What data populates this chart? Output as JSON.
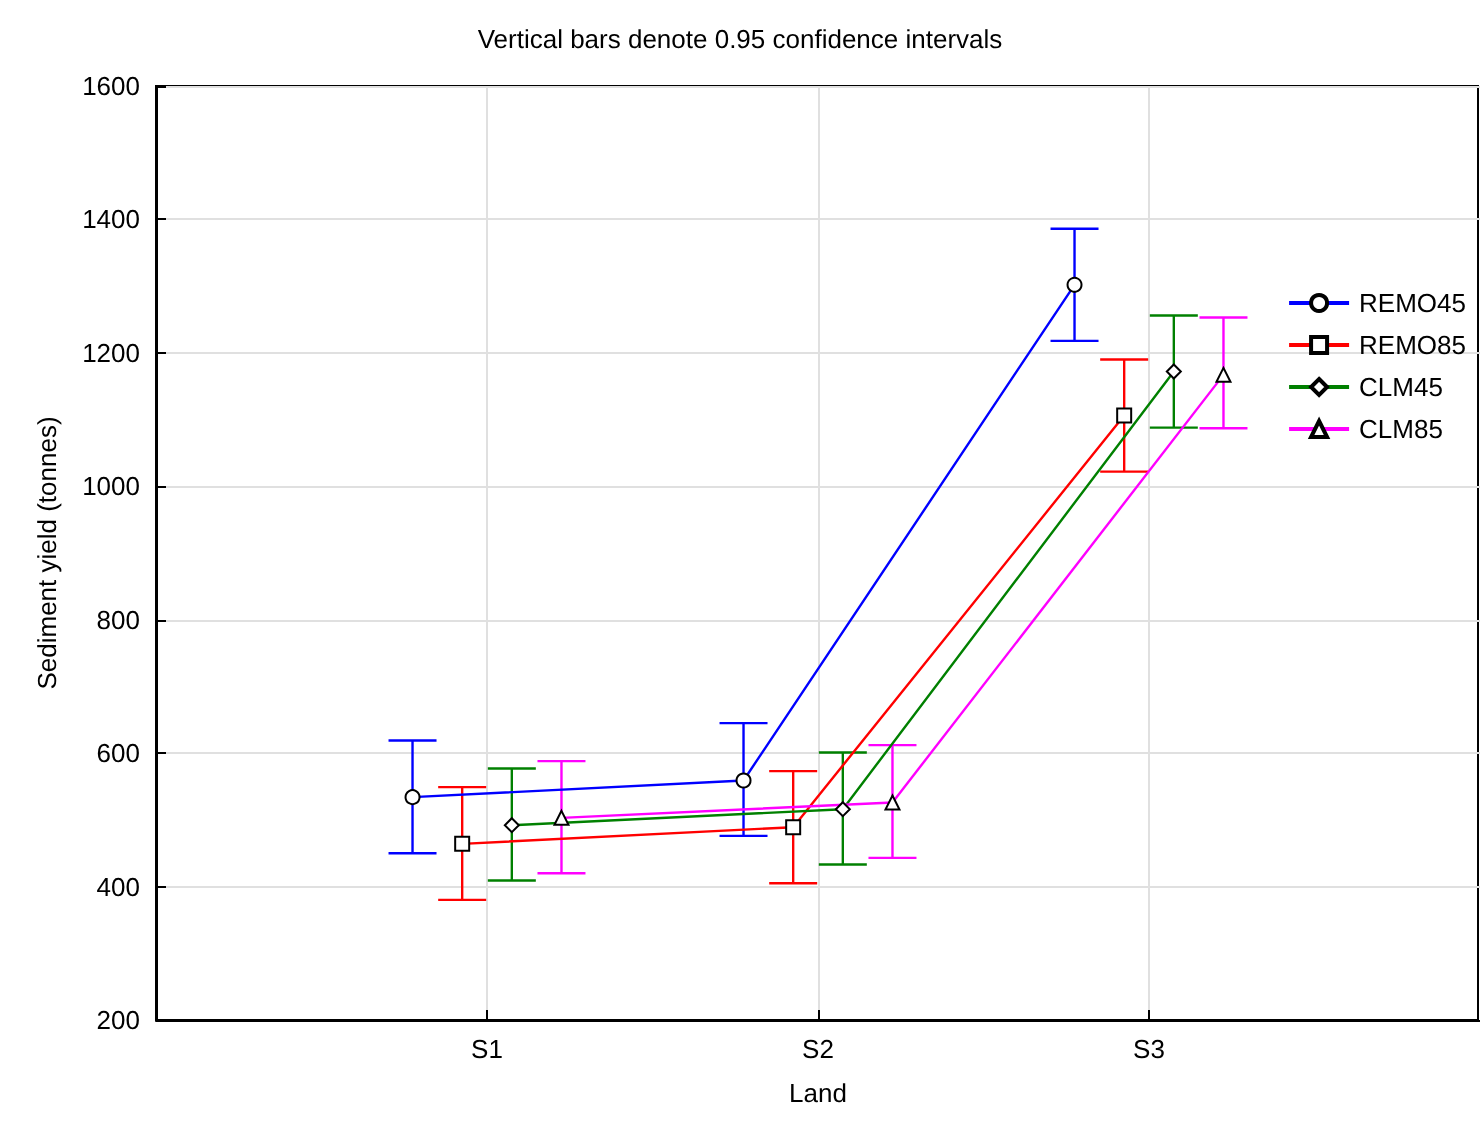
{
  "chart_data": {
    "type": "line",
    "title": "Vertical bars denote 0.95 confidence intervals",
    "xlabel": "Land",
    "ylabel": "Sediment yield (tonnes)",
    "categories": [
      "S1",
      "S2",
      "S3"
    ],
    "series": [
      {
        "name": "REMO45",
        "color": "#0000ff",
        "marker": "circle",
        "values": [
          534,
          559,
          1302
        ],
        "errors": [
          [
            450,
            619
          ],
          [
            476,
            645
          ],
          [
            1218,
            1386
          ]
        ]
      },
      {
        "name": "REMO85",
        "color": "#ff0000",
        "marker": "square",
        "values": [
          464,
          489,
          1106
        ],
        "errors": [
          [
            380,
            549
          ],
          [
            405,
            573
          ],
          [
            1022,
            1190
          ]
        ]
      },
      {
        "name": "CLM45",
        "color": "#008000",
        "marker": "diamond",
        "values": [
          492,
          516,
          1172
        ],
        "errors": [
          [
            409,
            577
          ],
          [
            433,
            601
          ],
          [
            1088,
            1256
          ]
        ]
      },
      {
        "name": "CLM85",
        "color": "#ff00ff",
        "marker": "triangle",
        "values": [
          503,
          526,
          1167
        ],
        "errors": [
          [
            420,
            588
          ],
          [
            443,
            612
          ],
          [
            1087,
            1253
          ]
        ]
      }
    ],
    "ylim": [
      200,
      1600
    ],
    "yticks": [
      200,
      400,
      600,
      800,
      1000,
      1200,
      1400,
      1600
    ],
    "grid": true,
    "legend": "right",
    "line_style": "solid"
  }
}
